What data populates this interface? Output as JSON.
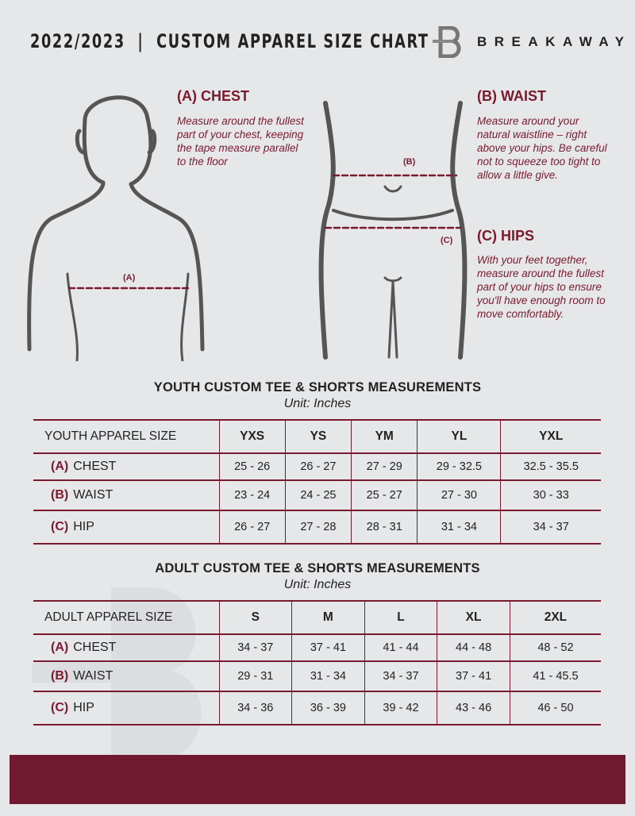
{
  "header": {
    "title": "2022/2023  |  CUSTOM APPAREL SIZE CHART",
    "brand": "BREAKAWAY"
  },
  "chest": {
    "heading": "(A) CHEST",
    "desc": "Measure around the fullest part of your chest, keeping the tape measure parallel to the floor",
    "tag": "(A)"
  },
  "waist": {
    "heading": "(B) WAIST",
    "desc": "Measure around your natural waistline – right above your hips. Be careful not to squeeze too tight to allow a little give.",
    "tag": "(B)"
  },
  "hips": {
    "heading": "(C) HIPS",
    "desc": "With your feet together, measure around the fullest part of your hips to ensure you'll have enough room to move comfortably.",
    "tag": "(C)"
  },
  "youth": {
    "title": "YOUTH CUSTOM TEE & SHORTS MEASUREMENTS",
    "unit": "Unit: Inches",
    "header": "YOUTH APPAREL SIZE",
    "sizes": [
      "YXS",
      "YS",
      "YM",
      "YL",
      "YXL"
    ],
    "rows": [
      {
        "letter": "(A)",
        "label": "CHEST",
        "values": [
          "25 - 26",
          "26 - 27",
          "27 - 29",
          "29 - 32.5",
          "32.5 - 35.5"
        ]
      },
      {
        "letter": "(B)",
        "label": "WAIST",
        "values": [
          "23 - 24",
          "24 - 25",
          "25 - 27",
          "27 - 30",
          "30 - 33"
        ]
      },
      {
        "letter": "(C)",
        "label": "HIP",
        "values": [
          "26 - 27",
          "27 - 28",
          "28 - 31",
          "31 - 34",
          "34 - 37"
        ]
      }
    ]
  },
  "adult": {
    "title": "ADULT CUSTOM TEE & SHORTS MEASUREMENTS",
    "unit": "Unit: Inches",
    "header": "ADULT APPAREL SIZE",
    "sizes": [
      "S",
      "M",
      "L",
      "XL",
      "2XL"
    ],
    "rows": [
      {
        "letter": "(A)",
        "label": "CHEST",
        "values": [
          "34 - 37",
          "37 - 41",
          "41 - 44",
          "44 - 48",
          "48 - 52"
        ]
      },
      {
        "letter": "(B)",
        "label": "WAIST",
        "values": [
          "29 - 31",
          "31 - 34",
          "34 - 37",
          "37 - 41",
          "41 - 45.5"
        ]
      },
      {
        "letter": "(C)",
        "label": "HIP",
        "values": [
          "34 - 36",
          "36 - 39",
          "39 - 42",
          "43 - 46",
          "46 - 50"
        ]
      }
    ]
  },
  "colors": {
    "accent": "#7a1a2e",
    "footer": "#711930",
    "background": "#e6e7e9"
  }
}
